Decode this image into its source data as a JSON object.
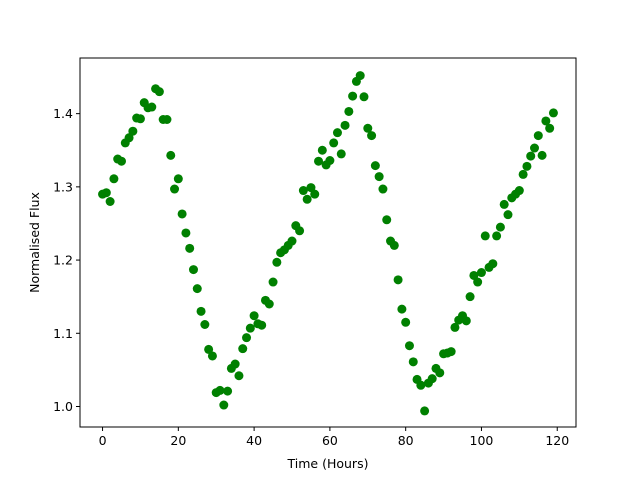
{
  "chart_data": {
    "type": "scatter",
    "title": "",
    "xlabel": "Time (Hours)",
    "ylabel": "Normalised Flux",
    "xlim": [
      -5.95,
      124.95
    ],
    "ylim": [
      0.972,
      1.476
    ],
    "xticks": [
      0,
      20,
      40,
      60,
      80,
      100,
      120
    ],
    "yticks": [
      1.0,
      1.1,
      1.2,
      1.3,
      1.4
    ],
    "ytick_labels": [
      "1.0",
      "1.1",
      "1.2",
      "1.3",
      "1.4"
    ],
    "grid": false,
    "marker_color": "#008000",
    "series": [
      {
        "x": [
          0,
          1,
          2,
          3,
          4,
          5,
          6,
          7,
          8,
          9,
          10,
          11,
          12,
          13,
          14,
          15,
          16,
          17,
          18,
          19,
          20,
          21,
          22,
          23,
          24,
          25,
          26,
          27,
          28,
          29,
          30,
          31,
          32,
          33,
          34,
          35,
          36,
          37,
          38,
          39,
          40,
          41,
          42,
          43,
          44,
          45,
          46,
          47,
          48,
          49,
          50,
          51,
          52,
          53,
          54,
          55,
          56,
          57,
          58,
          59,
          60,
          61,
          62,
          63,
          64,
          65,
          66,
          67,
          68,
          69,
          70,
          71,
          72,
          73,
          74,
          75,
          76,
          77,
          78,
          79,
          80,
          81,
          82,
          83,
          84,
          85,
          86,
          87,
          88,
          89,
          90,
          91,
          92,
          93,
          94,
          95,
          96,
          97,
          98,
          99,
          100,
          101,
          102,
          103,
          104,
          105,
          106,
          107,
          108,
          109,
          110,
          111,
          112,
          113,
          114,
          115,
          116,
          117,
          118,
          119
        ],
        "y": [
          1.29,
          1.292,
          1.28,
          1.311,
          1.338,
          1.335,
          1.36,
          1.367,
          1.376,
          1.394,
          1.393,
          1.415,
          1.408,
          1.409,
          1.434,
          1.43,
          1.392,
          1.392,
          1.343,
          1.297,
          1.311,
          1.263,
          1.237,
          1.216,
          1.187,
          1.161,
          1.13,
          1.112,
          1.078,
          1.069,
          1.019,
          1.022,
          1.002,
          1.021,
          1.052,
          1.058,
          1.042,
          1.079,
          1.094,
          1.107,
          1.124,
          1.113,
          1.111,
          1.145,
          1.14,
          1.17,
          1.197,
          1.21,
          1.214,
          1.22,
          1.226,
          1.247,
          1.24,
          1.295,
          1.283,
          1.299,
          1.29,
          1.335,
          1.35,
          1.33,
          1.336,
          1.36,
          1.374,
          1.345,
          1.384,
          1.403,
          1.424,
          1.444,
          1.452,
          1.423,
          1.38,
          1.37,
          1.329,
          1.314,
          1.297,
          1.255,
          1.226,
          1.22,
          1.173,
          1.133,
          1.115,
          1.083,
          1.061,
          1.037,
          1.029,
          0.994,
          1.032,
          1.038,
          1.052,
          1.046,
          1.072,
          1.073,
          1.075,
          1.108,
          1.118,
          1.124,
          1.117,
          1.15,
          1.179,
          1.17,
          1.183,
          1.233,
          1.19,
          1.195,
          1.233,
          1.245,
          1.276,
          1.262,
          1.285,
          1.29,
          1.295,
          1.317,
          1.328,
          1.342,
          1.353,
          1.37,
          1.343,
          1.39,
          1.38,
          1.401
        ]
      }
    ]
  }
}
